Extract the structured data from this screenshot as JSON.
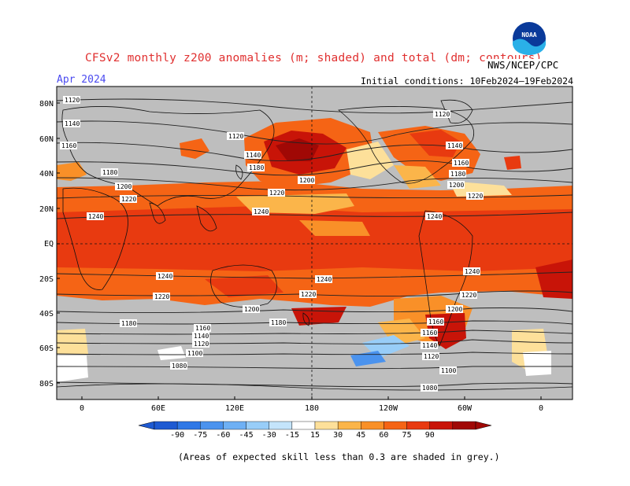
{
  "title": "CFSv2 monthly z200 anomalies (m; shaded) and total (dm; contours)",
  "forecast_month": "Apr 2024",
  "initial_conditions": "Initial conditions: 10Feb2024–19Feb2024",
  "agency": "NWS/NCEP/CPC",
  "logo_text": "NOAA",
  "lat_labels": [
    "80N",
    "60N",
    "40N",
    "20N",
    "EQ",
    "20S",
    "40S",
    "60S",
    "80S"
  ],
  "lon_labels": [
    "0",
    "60E",
    "120E",
    "180",
    "120W",
    "60W",
    "0"
  ],
  "colorbar": {
    "ticks": [
      "-90",
      "-75",
      "-60",
      "-45",
      "-30",
      "-15",
      "15",
      "30",
      "45",
      "60",
      "75",
      "90"
    ],
    "colors": [
      "#1e5ad2",
      "#2f78e6",
      "#4b93ee",
      "#6eb0f4",
      "#98cdf8",
      "#c4e4fb",
      "#ffffff",
      "#fde09a",
      "#fbb54a",
      "#f99028",
      "#f56415",
      "#e83a10",
      "#c81408",
      "#a00805"
    ]
  },
  "contour_labels": [
    "1120",
    "1140",
    "1160",
    "1180",
    "1200",
    "1220",
    "1240",
    "1080",
    "1100"
  ],
  "footnote": "(Areas of expected skill less than 0.3 are shaded in grey.)",
  "colors": {
    "title": "#e03030",
    "month": "#4a4af0",
    "grey": "#bebebe",
    "warm": "#f56415"
  }
}
